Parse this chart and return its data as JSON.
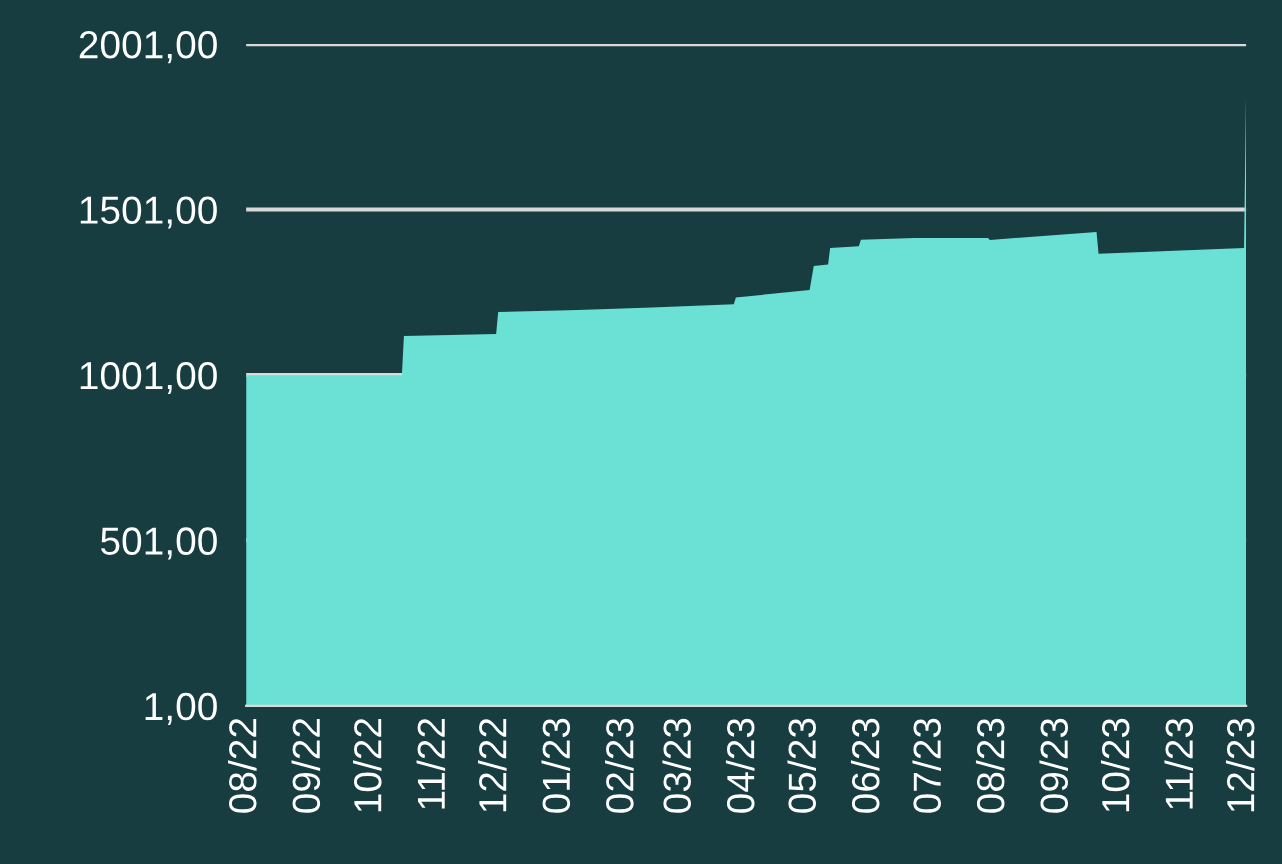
{
  "chart_data": {
    "type": "area",
    "x": [
      "2022-08-01",
      "2022-10-16",
      "2022-10-17",
      "2022-12-01",
      "2022-12-02",
      "2023-01-10",
      "2023-02-15",
      "2023-03-27",
      "2023-03-28",
      "2023-05-03",
      "2023-05-05",
      "2023-05-12",
      "2023-05-13",
      "2023-05-27",
      "2023-05-28",
      "2023-06-23",
      "2023-07-29",
      "2023-07-30",
      "2023-09-20",
      "2023-09-21",
      "2023-12-01",
      "2023-12-02"
    ],
    "series": [
      {
        "color": "#6be0d5",
        "values": [
          1000,
          1000,
          1119,
          1125,
          1191,
          1197,
          1205,
          1215,
          1235,
          1258,
          1330,
          1335,
          1385,
          1390,
          1410,
          1415,
          1415,
          1409,
          1433,
          1367,
          1385,
          1868
        ]
      }
    ],
    "xlim": [
      "2022-08-01",
      "2023-12-02"
    ],
    "xticks": [
      {
        "value": "2022-08-01",
        "label": "08/22"
      },
      {
        "value": "2022-09-01",
        "label": "09/22"
      },
      {
        "value": "2022-10-01",
        "label": "10/22"
      },
      {
        "value": "2022-11-01",
        "label": "11/22"
      },
      {
        "value": "2022-12-01",
        "label": "12/22"
      },
      {
        "value": "2023-01-01",
        "label": "01/23"
      },
      {
        "value": "2023-02-01",
        "label": "02/23"
      },
      {
        "value": "2023-03-01",
        "label": "03/23"
      },
      {
        "value": "2023-04-01",
        "label": "04/23"
      },
      {
        "value": "2023-05-01",
        "label": "05/23"
      },
      {
        "value": "2023-06-01",
        "label": "06/23"
      },
      {
        "value": "2023-07-01",
        "label": "07/23"
      },
      {
        "value": "2023-08-01",
        "label": "08/23"
      },
      {
        "value": "2023-09-01",
        "label": "09/23"
      },
      {
        "value": "2023-10-01",
        "label": "10/23"
      },
      {
        "value": "2023-11-01",
        "label": "11/23"
      },
      {
        "value": "2023-12-01",
        "label": "12/23"
      }
    ],
    "ylim": [
      1,
      2001
    ],
    "yticks": [
      {
        "value": 1,
        "label": "1,00"
      },
      {
        "value": 501,
        "label": "501,00"
      },
      {
        "value": 1001,
        "label": "1001,00"
      },
      {
        "value": 1501,
        "label": "1501,00"
      },
      {
        "value": 2001,
        "label": "2001,00"
      }
    ],
    "grid": "y"
  }
}
